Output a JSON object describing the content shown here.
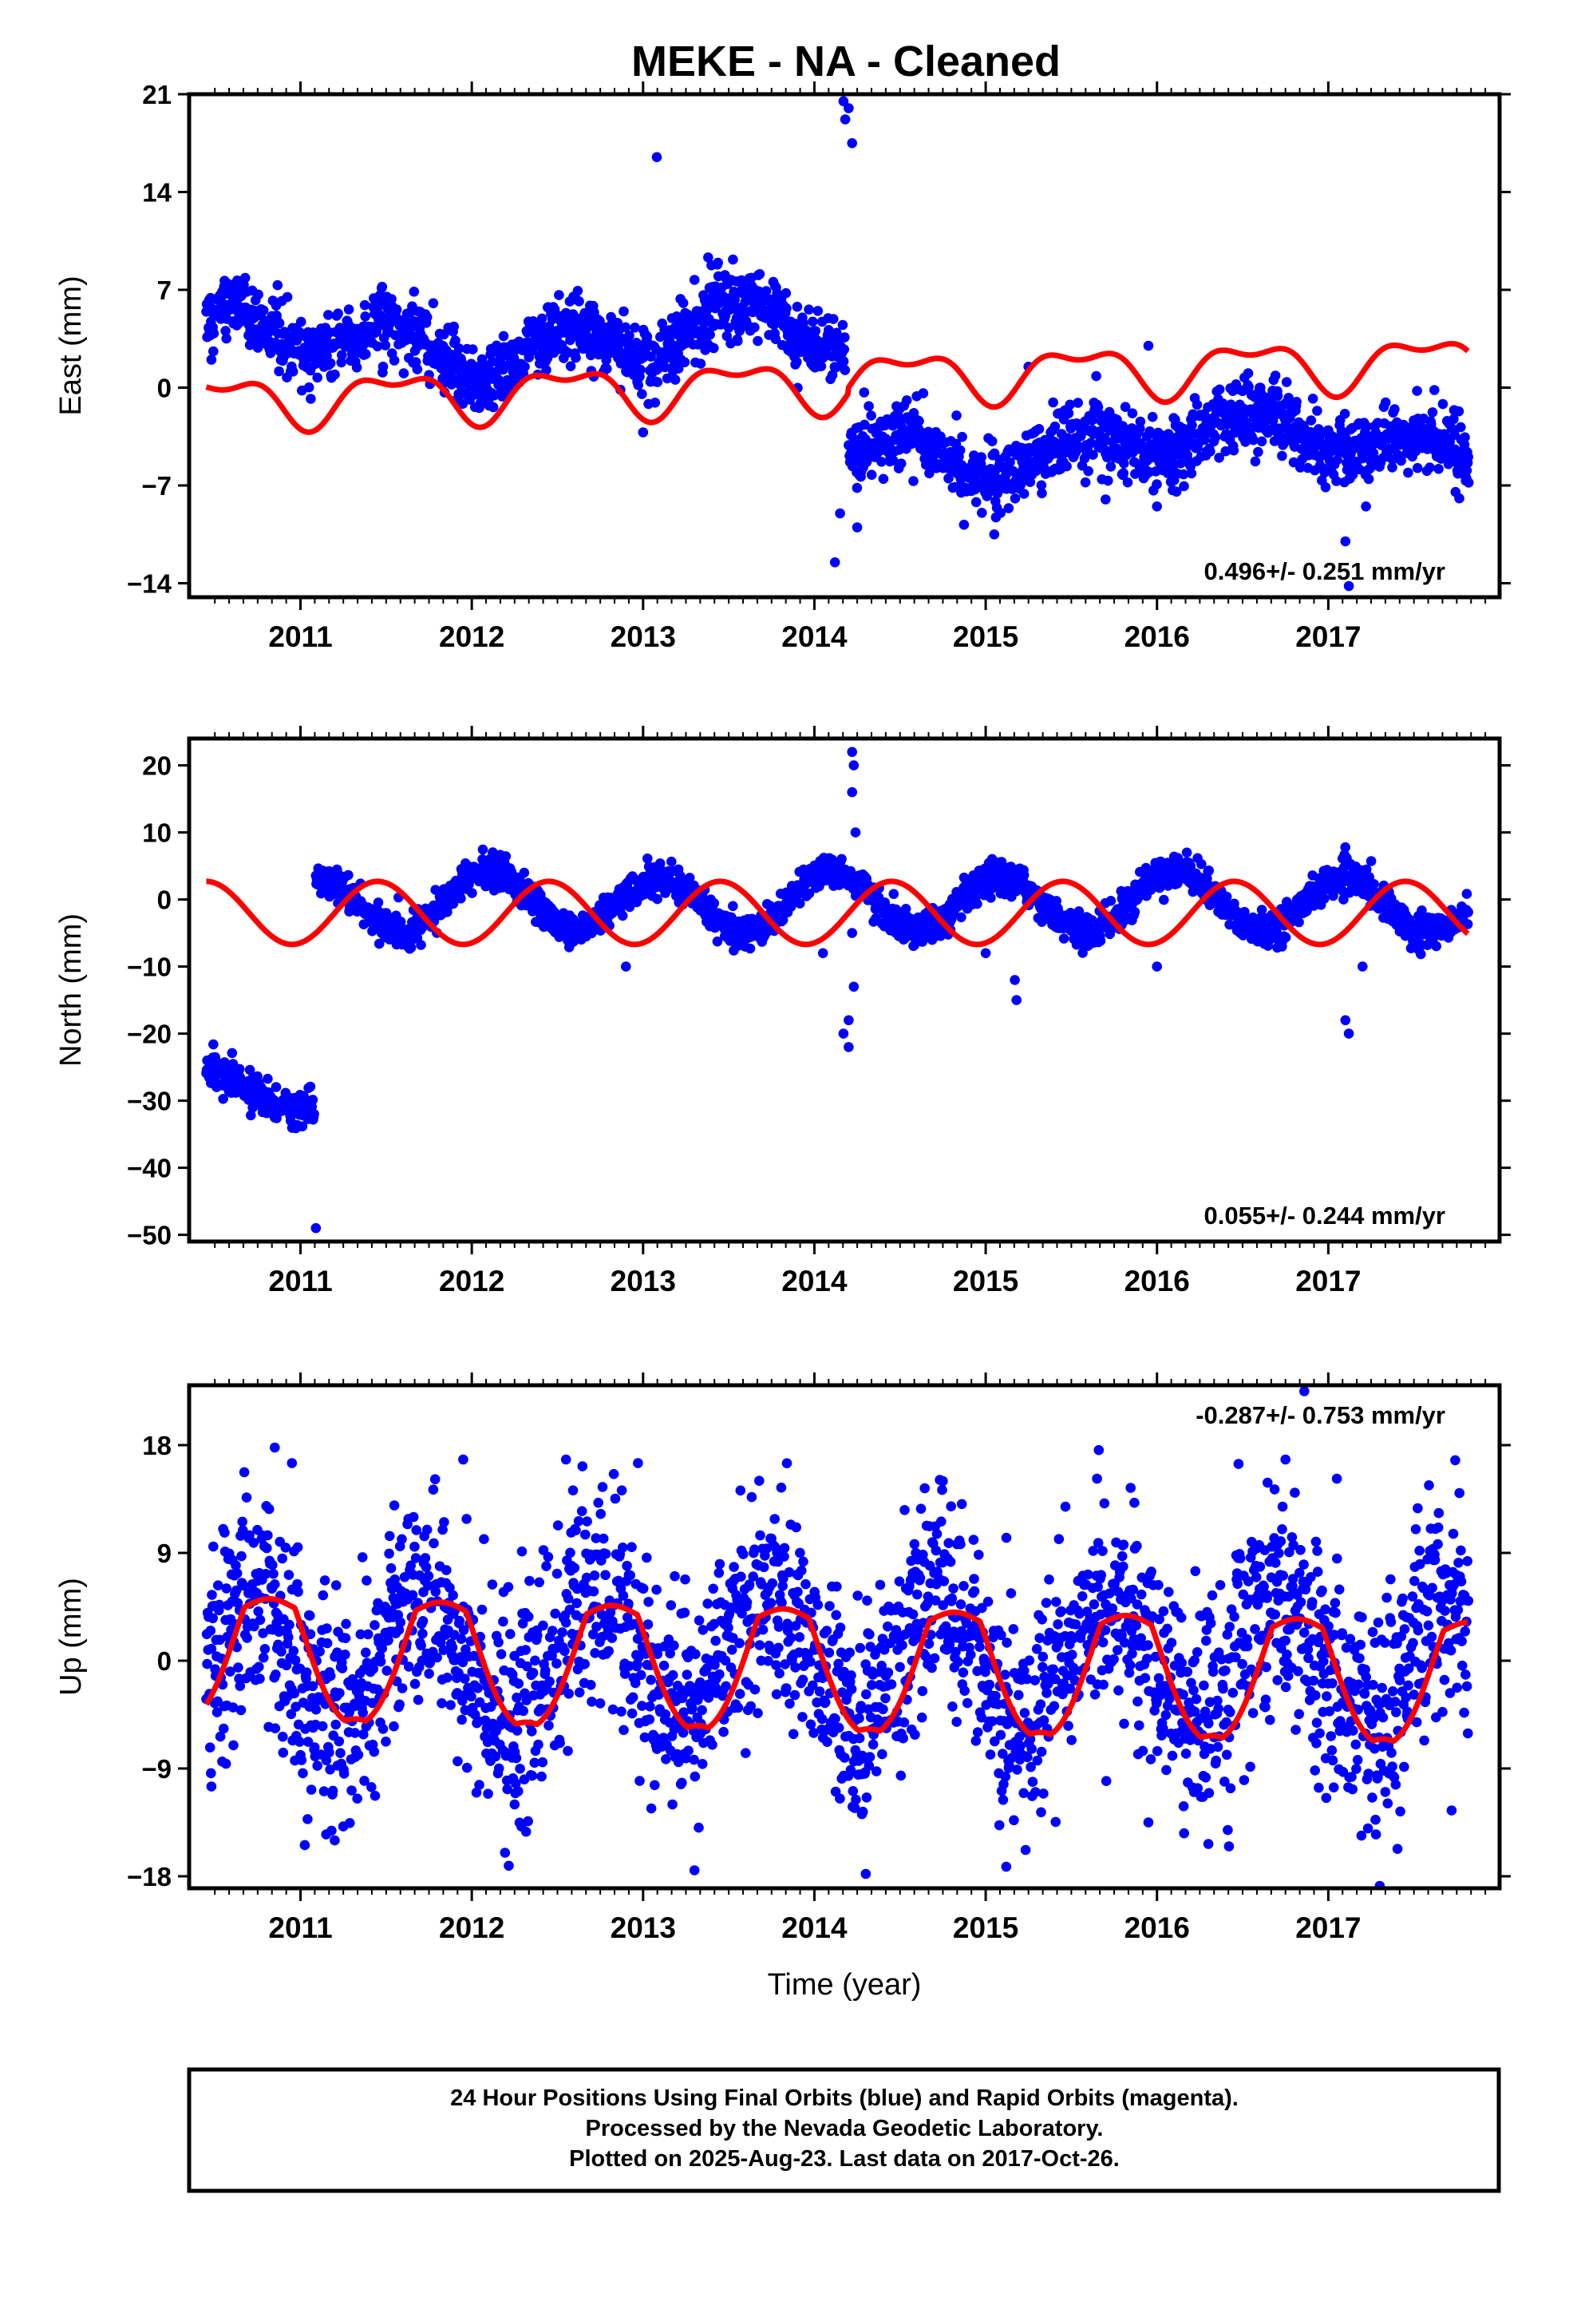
{
  "title": "MEKE  - NA - Cleaned",
  "footer": {
    "lines": [
      "24 Hour Positions Using Final Orbits (blue) and Rapid Orbits (magenta).",
      "Processed by the Nevada Geodetic Laboratory.",
      "Plotted on 2025-Aug-23. Last data on 2017-Oct-26."
    ]
  },
  "colors": {
    "final_orbits": "#0000ff",
    "model_fit": "#ff0000",
    "axes": "#000000"
  },
  "chart_data": [
    {
      "type": "scatter",
      "id": "east",
      "ylabel": "East (mm)",
      "xlabel": "",
      "xlim": [
        2010.35,
        2018.0
      ],
      "ylim": [
        -15,
        21
      ],
      "xticks": [
        2011,
        2012,
        2013,
        2014,
        2015,
        2016,
        2017
      ],
      "yticks": [
        -14,
        -7,
        0,
        7,
        14,
        21
      ],
      "rate_label": "0.496+/- 0.251 mm/yr",
      "rate_position": "bottom-right",
      "grid": false,
      "data_range": [
        2010.45,
        2017.82
      ],
      "series": [
        {
          "kind": "points",
          "segments": [
            {
              "x_start": 2010.45,
              "x_end": 2014.18,
              "offset": 3.2,
              "trend": 0.5,
              "annual": 1.6,
              "noise": 1.2,
              "phase": 0.55
            },
            {
              "x_start": 2014.2,
              "x_end": 2017.82,
              "offset": -4.2,
              "trend": 0.5,
              "annual": 1.2,
              "noise": 1.2,
              "phase": 0.55
            }
          ],
          "outliers": [
            [
              2013.08,
              16.5
            ],
            [
              2014.18,
              19.2
            ],
            [
              2014.2,
              20
            ],
            [
              2014.22,
              17.5
            ],
            [
              2014.17,
              20.5
            ],
            [
              2014.12,
              -12.5
            ],
            [
              2014.15,
              -9
            ],
            [
              2014.25,
              -10
            ],
            [
              2013.0,
              -3.2
            ],
            [
              2017.12,
              -14.2
            ],
            [
              2017.1,
              -11
            ],
            [
              2015.25,
              1.5
            ],
            [
              2015.95,
              3.0
            ],
            [
              2010.48,
              2.0
            ],
            [
              2011.06,
              -0.8
            ],
            [
              2016.0,
              -8.5
            ],
            [
              2015.05,
              -10.5
            ],
            [
              2017.22,
              -8.5
            ],
            [
              2015.7,
              -8.0
            ]
          ]
        },
        {
          "kind": "line",
          "model": {
            "offset": -1.0,
            "trend": 0.35,
            "annual": 1.6,
            "semiannual": 0.8,
            "phase": 0.4,
            "step_year": 2014.2,
            "step_size": 0.4
          }
        }
      ]
    },
    {
      "type": "scatter",
      "id": "north",
      "ylabel": "North (mm)",
      "xlabel": "",
      "xlim": [
        2010.35,
        2018.0
      ],
      "ylim": [
        -51,
        24
      ],
      "xticks": [
        2011,
        2012,
        2013,
        2014,
        2015,
        2016,
        2017
      ],
      "yticks": [
        -50,
        -40,
        -30,
        -20,
        -10,
        0,
        10,
        20
      ],
      "rate_label": "0.055+/- 0.244 mm/yr",
      "rate_position": "bottom-right",
      "grid": false,
      "data_range": [
        2010.45,
        2017.82
      ],
      "series": [
        {
          "kind": "points",
          "segments": [
            {
              "x_start": 2010.45,
              "x_end": 2011.08,
              "offset": -26.0,
              "trend": -9.0,
              "annual": 0.8,
              "noise": 1.3,
              "phase": 0.3
            },
            {
              "x_start": 2011.09,
              "x_end": 2017.82,
              "offset": -0.5,
              "trend": 0.1,
              "annual": 4.2,
              "noise": 1.2,
              "phase": 0.1
            }
          ],
          "outliers": [
            [
              2011.09,
              -49
            ],
            [
              2014.22,
              22
            ],
            [
              2014.23,
              20
            ],
            [
              2014.24,
              10
            ],
            [
              2014.22,
              16
            ],
            [
              2014.2,
              -18
            ],
            [
              2014.17,
              -20
            ],
            [
              2014.2,
              -22
            ],
            [
              2014.23,
              -13
            ],
            [
              2014.22,
              -5
            ],
            [
              2015.18,
              -15
            ],
            [
              2015.17,
              -12
            ],
            [
              2017.12,
              -20
            ],
            [
              2017.1,
              -18
            ],
            [
              2017.2,
              -10
            ],
            [
              2015.0,
              -8
            ],
            [
              2012.9,
              -10
            ],
            [
              2016.0,
              -10
            ],
            [
              2014.05,
              -8
            ]
          ]
        },
        {
          "kind": "line",
          "model": {
            "offset": -2.0,
            "trend": 0.0,
            "annual": 4.7,
            "semiannual": 0.0,
            "phase": 0.1,
            "step_year": 0,
            "step_size": 0
          }
        }
      ]
    },
    {
      "type": "scatter",
      "id": "up",
      "ylabel": "Up (mm)",
      "xlabel": "Time (year)",
      "xlim": [
        2010.35,
        2018.0
      ],
      "ylim": [
        -19,
        23
      ],
      "xticks": [
        2011,
        2012,
        2013,
        2014,
        2015,
        2016,
        2017
      ],
      "yticks": [
        -18,
        -9,
        0,
        9,
        18
      ],
      "rate_label": "-0.287+/- 0.753 mm/yr",
      "rate_position": "top-right",
      "grid": false,
      "data_range": [
        2010.45,
        2017.82
      ],
      "series": [
        {
          "kind": "points",
          "segments": [
            {
              "x_start": 2010.45,
              "x_end": 2017.82,
              "offset": 0.2,
              "trend": -0.28,
              "annual": 5.0,
              "noise": 4.5,
              "phase": 0.2
            }
          ],
          "outliers": [
            [
              2010.85,
              17.8
            ],
            [
              2010.95,
              16.5
            ],
            [
              2011.95,
              16.8
            ],
            [
              2012.55,
              16.8
            ],
            [
              2012.97,
              16.5
            ],
            [
              2014.75,
              15.0
            ],
            [
              2015.65,
              15.2
            ],
            [
              2016.75,
              16.8
            ],
            [
              2016.86,
              22.5
            ],
            [
              2017.05,
              15.2
            ],
            [
              2011.2,
              -15.0
            ],
            [
              2011.15,
              -14.5
            ],
            [
              2013.3,
              -17.5
            ],
            [
              2014.3,
              -17.8
            ],
            [
              2015.12,
              -17.2
            ],
            [
              2016.3,
              -15.3
            ],
            [
              2016.42,
              -15.5
            ],
            [
              2017.3,
              -18.8
            ],
            [
              2010.48,
              -10.5
            ],
            [
              2017.72,
              -12.5
            ],
            [
              2012.25,
              -12.0
            ],
            [
              2015.95,
              -13.5
            ]
          ]
        },
        {
          "kind": "line",
          "model": {
            "offset": -0.2,
            "trend": -0.28,
            "annual": 4.6,
            "semiannual": 1.9,
            "phase": 0.2,
            "step_year": 0,
            "step_size": 0
          }
        }
      ]
    }
  ]
}
